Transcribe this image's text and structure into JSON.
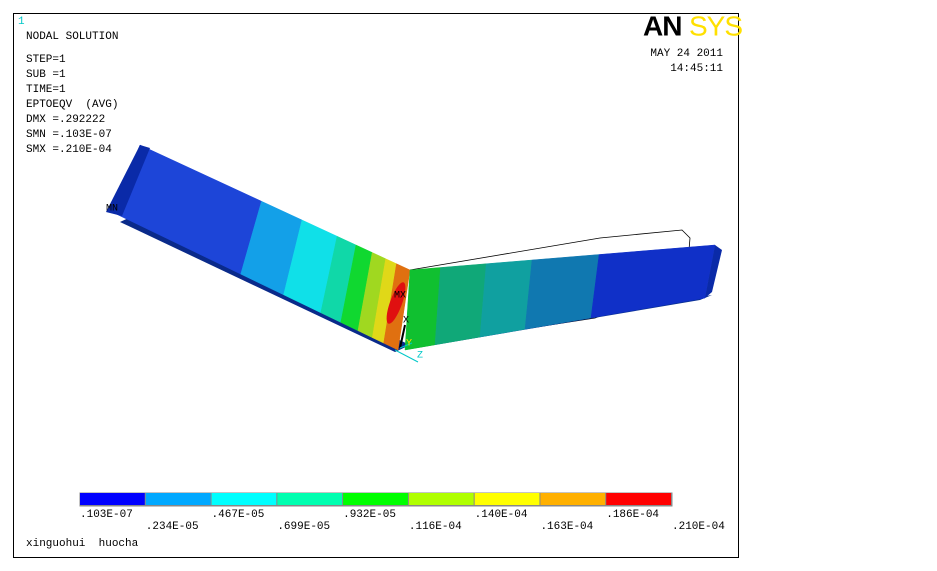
{
  "header": {
    "window_number": "1",
    "title": "NODAL SOLUTION",
    "info": [
      "STEP=1",
      "SUB =1",
      "TIME=1",
      "EPTOEQV  (AVG)",
      "DMX =.292222",
      "SMN =.103E-07",
      "SMX =.210E-04"
    ],
    "logo": {
      "part1": "AN",
      "part2": "SYS"
    },
    "date": "MAY 24 2011",
    "time": "14:45:11"
  },
  "model_labels": {
    "max": "MX",
    "min": "MN",
    "axis_x": "X",
    "axis_y": "Y",
    "axis_z": "Z"
  },
  "legend": {
    "labels": [
      ".103E-07",
      ".234E-05",
      ".467E-05",
      ".699E-05",
      ".932E-05",
      ".116E-04",
      ".140E-04",
      ".163E-04",
      ".186E-04",
      ".210E-04"
    ]
  },
  "footer": "xinguohui  huocha"
}
